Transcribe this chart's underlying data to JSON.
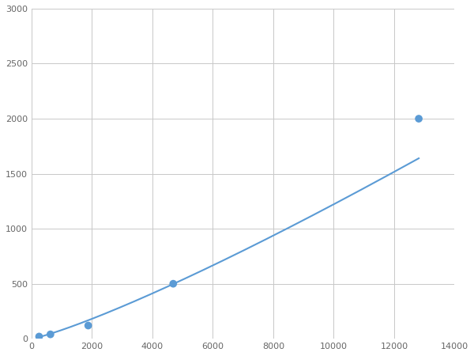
{
  "x_data": [
    250,
    625,
    1875,
    4688,
    12813
  ],
  "y_data": [
    20,
    40,
    120,
    500,
    2000
  ],
  "line_color": "#5B9BD5",
  "marker_color": "#5B9BD5",
  "marker_size": 7,
  "line_width": 1.5,
  "xlim": [
    0,
    14000
  ],
  "ylim": [
    0,
    3000
  ],
  "xticks": [
    0,
    2000,
    4000,
    6000,
    8000,
    10000,
    12000,
    14000
  ],
  "yticks": [
    0,
    500,
    1000,
    1500,
    2000,
    2500,
    3000
  ],
  "grid_color": "#C8C8C8",
  "background_color": "#FFFFFF",
  "figsize": [
    6.0,
    4.5
  ],
  "dpi": 100
}
